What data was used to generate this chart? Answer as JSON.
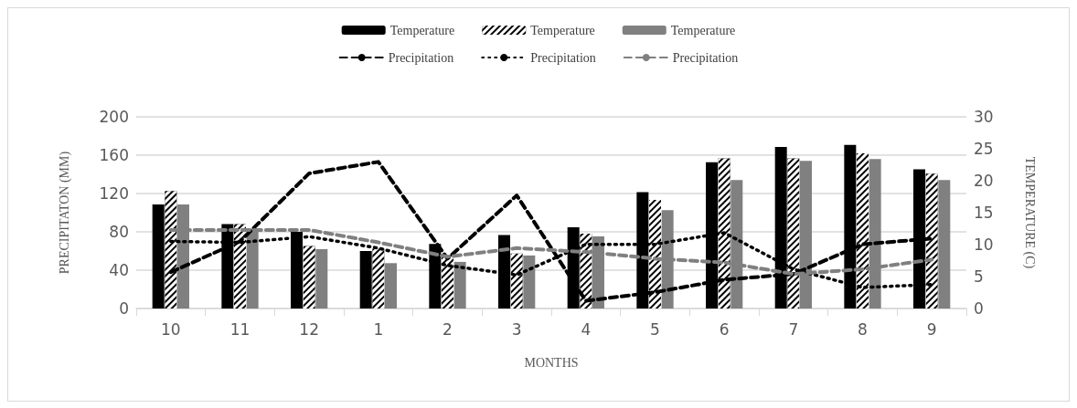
{
  "chart_data": {
    "type": "bar",
    "xlabel": "MONTHS",
    "ylabel": "PRECIPITATON (MM)",
    "y2label": "TEMPERATURE (C)",
    "categories": [
      "10",
      "11",
      "12",
      "1",
      "2",
      "3",
      "4",
      "5",
      "6",
      "7",
      "8",
      "9"
    ],
    "series": [
      {
        "name": "Temperature",
        "color": "#000000",
        "axis": "y2",
        "values": [
          16.3,
          13.2,
          12.0,
          9.0,
          10.1,
          11.5,
          12.7,
          18.2,
          22.9,
          25.3,
          25.6,
          21.8
        ]
      },
      {
        "name": "Temperature",
        "color": "#000000",
        "axis": "y2",
        "values": [
          18.4,
          13.2,
          9.8,
          9.4,
          8.4,
          8.6,
          11.7,
          17.0,
          23.5,
          23.5,
          24.3,
          21.1
        ]
      },
      {
        "name": "Temperature",
        "color": "#808080",
        "axis": "y2",
        "values": [
          16.3,
          12.5,
          9.3,
          7.1,
          7.3,
          8.3,
          11.3,
          15.4,
          20.1,
          23.1,
          23.4,
          20.1
        ]
      },
      {
        "name": "Precipitation",
        "type": "line",
        "color": "#000000",
        "line_style": "dashed",
        "values": [
          38,
          70,
          141,
          153,
          52,
          118,
          8,
          17,
          30,
          36,
          67,
          73
        ]
      },
      {
        "name": "Precipitation",
        "type": "line",
        "color": "#000000",
        "line_style": "dotted",
        "values": [
          70,
          69,
          75,
          63,
          45,
          35,
          67,
          67,
          79,
          41,
          22,
          25
        ]
      },
      {
        "name": "Precipitation",
        "type": "line",
        "color": "#808080",
        "line_style": "dashed",
        "values": [
          82,
          82,
          82,
          69,
          54,
          63,
          59,
          52,
          48,
          36,
          41,
          51
        ]
      }
    ],
    "ylim": [
      0,
      200
    ],
    "yticks": [
      0,
      40,
      80,
      120,
      160,
      200
    ],
    "y2lim": [
      0,
      30
    ],
    "y2ticks": [
      0,
      5,
      10,
      15,
      20,
      25,
      30
    ],
    "grid": "y",
    "legend": "top",
    "marker": "none"
  }
}
